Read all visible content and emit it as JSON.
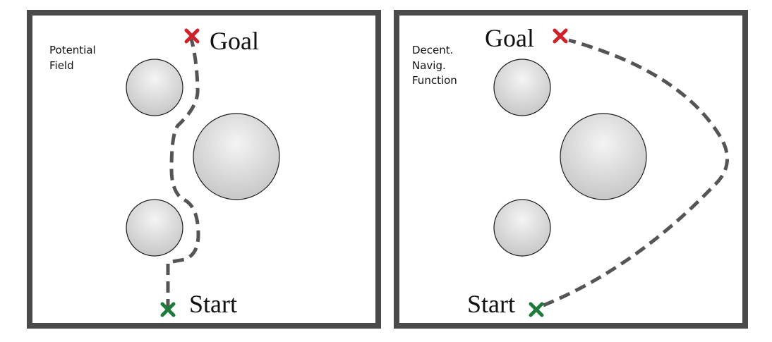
{
  "panels": [
    {
      "caption_lines": [
        "Potential",
        "Field"
      ],
      "goal_label": "Goal",
      "start_label": "Start"
    },
    {
      "caption_lines": [
        "Decent.",
        "Navig.",
        "Function"
      ],
      "goal_label": "Goal",
      "start_label": "Start"
    }
  ],
  "colors": {
    "frame": "#4a4a4a",
    "path": "#555555",
    "goal_marker": "#d0202a",
    "start_marker": "#1e7a3a",
    "obstacle_light": "#f4f4f4",
    "obstacle_dark": "#c8c8c8"
  },
  "icons": {
    "goal": "red-x-icon",
    "start": "green-x-icon"
  }
}
